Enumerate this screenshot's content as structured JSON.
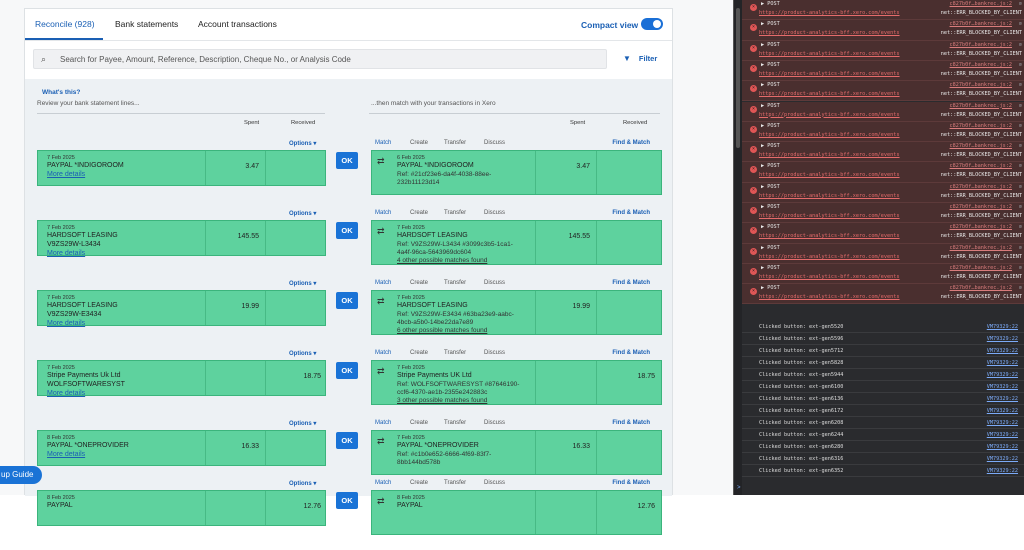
{
  "tabs": {
    "reconcile": "Reconcile (928)",
    "bank_statements": "Bank statements",
    "account_transactions": "Account transactions"
  },
  "compact_view": "Compact view",
  "search": {
    "placeholder": "Search for Payee, Amount, Reference, Description, Cheque No., or Analysis Code"
  },
  "filter": "Filter",
  "whats_this": "What's this?",
  "left_header": "Review your bank statement lines...",
  "right_header": "...then match with your transactions in Xero",
  "col_spent": "Spent",
  "col_received": "Received",
  "options": "Options",
  "ok": "OK",
  "right_tabs": [
    "Match",
    "Create",
    "Transfer",
    "Discuss"
  ],
  "find_match": "Find & Match",
  "setup_guide": "up Guide",
  "rows": [
    {
      "date": "7 Feb 2025",
      "payee": "PAYPAL *INDIGOROOM",
      "ref": "",
      "more": "More details",
      "spent": "3.47",
      "received": "",
      "m_date": "6 Feb 2025",
      "m_payee": "PAYPAL *INDIGOROOM",
      "m_ref": "Ref: #21cf23e6-da4f-4038-88ee-",
      "m_ref2": "232b11123d14",
      "m_other": "",
      "m_spent": "3.47",
      "m_received": ""
    },
    {
      "date": "7 Feb 2025",
      "payee": "HARDSOFT LEASING",
      "ref": "V9ZS29W-L3434",
      "more": "More details",
      "spent": "145.55",
      "received": "",
      "m_date": "7 Feb 2025",
      "m_payee": "HARDSOFT LEASING",
      "m_ref": "Ref: V9ZS29W-L3434 #3099c3b5-1ca1-",
      "m_ref2": "4a4f-96ca-5643969dc604",
      "m_other": "4 other possible matches found",
      "m_spent": "145.55",
      "m_received": ""
    },
    {
      "date": "7 Feb 2025",
      "payee": "HARDSOFT LEASING",
      "ref": "V9ZS29W-E3434",
      "more": "More details",
      "spent": "19.99",
      "received": "",
      "m_date": "7 Feb 2025",
      "m_payee": "HARDSOFT LEASING",
      "m_ref": "Ref: V9ZS29W-E3434 #63ba23e9-aabc-",
      "m_ref2": "4bcb-a5b0-14be22da7e89",
      "m_other": "6 other possible matches found",
      "m_spent": "19.99",
      "m_received": ""
    },
    {
      "date": "7 Feb 2025",
      "payee": "Stripe Payments Uk Ltd",
      "ref": "WOLFSOFTWARESYST",
      "more": "More details",
      "spent": "",
      "received": "18.75",
      "m_date": "7 Feb 2025",
      "m_payee": "Stripe Payments UK Ltd",
      "m_ref": "Ref: WOLFSOFTWARESYST #87646190-",
      "m_ref2": "ccf6-4370-ae1b-2355e242883c",
      "m_other": "3 other possible matches found",
      "m_spent": "",
      "m_received": "18.75"
    },
    {
      "date": "8 Feb 2025",
      "payee": "PAYPAL *ONEPROVIDER",
      "ref": "",
      "more": "More details",
      "spent": "16.33",
      "received": "",
      "m_date": "7 Feb 2025",
      "m_payee": "PAYPAL *ONEPROVIDER",
      "m_ref": "Ref: #c1b0e652-6666-4f69-83f7-",
      "m_ref2": "8bb144bd578b",
      "m_other": "",
      "m_spent": "16.33",
      "m_received": ""
    },
    {
      "date": "8 Feb 2025",
      "payee": "PAYPAL",
      "ref": "",
      "more": "",
      "spent": "",
      "received": "12.76",
      "m_date": "8 Feb 2025",
      "m_payee": "PAYPAL",
      "m_ref": "",
      "m_ref2": "",
      "m_other": "",
      "m_spent": "",
      "m_received": "12.76"
    }
  ],
  "devtools": {
    "error_method": "▶ POST",
    "error_src": "c827b0f…bankrec.js:2",
    "error_url": "https://product-analytics-bff.xero.com/events",
    "error_msg": "net::ERR_BLOCKED_BY_CLIENT",
    "error_count": 15,
    "logs": [
      {
        "text": "Clicked button: ext-gen5520",
        "src": "VM79329:22"
      },
      {
        "text": "Clicked button: ext-gen5596",
        "src": "VM79329:22"
      },
      {
        "text": "Clicked button: ext-gen5712",
        "src": "VM79329:22"
      },
      {
        "text": "Clicked button: ext-gen5828",
        "src": "VM79329:22"
      },
      {
        "text": "Clicked button: ext-gen5944",
        "src": "VM79329:22"
      },
      {
        "text": "Clicked button: ext-gen6100",
        "src": "VM79329:22"
      },
      {
        "text": "Clicked button: ext-gen6136",
        "src": "VM79329:22"
      },
      {
        "text": "Clicked button: ext-gen6172",
        "src": "VM79329:22"
      },
      {
        "text": "Clicked button: ext-gen6208",
        "src": "VM79329:22"
      },
      {
        "text": "Clicked button: ext-gen6244",
        "src": "VM79329:22"
      },
      {
        "text": "Clicked button: ext-gen6280",
        "src": "VM79329:22"
      },
      {
        "text": "Clicked button: ext-gen6316",
        "src": "VM79329:22"
      },
      {
        "text": "Clicked button: ext-gen6352",
        "src": "VM79329:22"
      }
    ],
    "prompt": ">"
  }
}
